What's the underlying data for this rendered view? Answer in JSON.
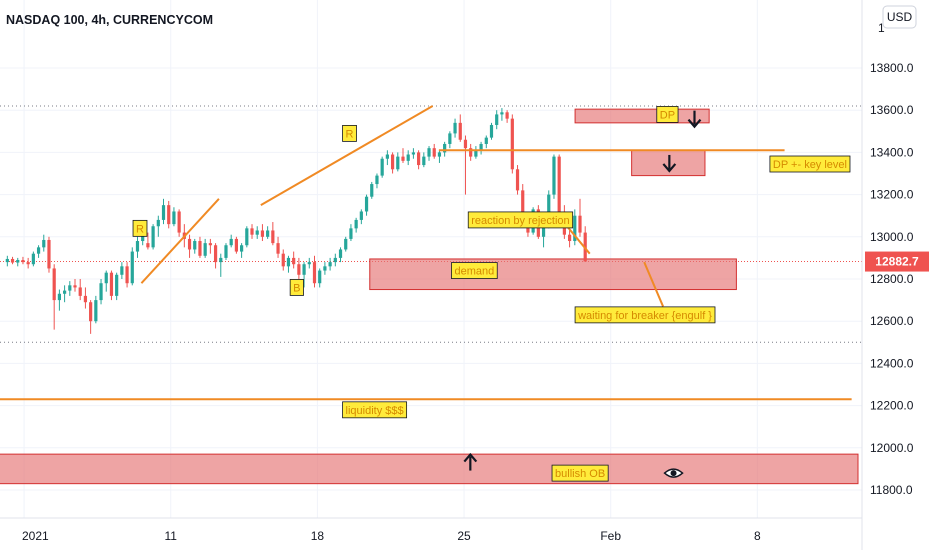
{
  "chart_data": {
    "type": "candlestick",
    "title": "NASDAQ 100, 4h, CURRENCYCOM",
    "currency": "USD",
    "last_price": "12882.7",
    "ylim": [
      11740,
      14060
    ],
    "y_ticks": [
      {
        "value": 13800,
        "label": "13800.0"
      },
      {
        "value": 13600,
        "label": "13600.0"
      },
      {
        "value": 13400,
        "label": "13400.0"
      },
      {
        "value": 13200,
        "label": "13200.0"
      },
      {
        "value": 13000,
        "label": "13000.0"
      },
      {
        "value": 12800,
        "label": "12800.0"
      },
      {
        "value": 12600,
        "label": "12600.0"
      },
      {
        "value": 12400,
        "label": "12400.0"
      },
      {
        "value": 12200,
        "label": "12200.0"
      },
      {
        "value": 12000,
        "label": "12000.0"
      },
      {
        "value": 11800,
        "label": "11800.0"
      }
    ],
    "top_partial_tick": "1",
    "x_ticks": [
      {
        "day": 0,
        "label": "2021"
      },
      {
        "day": 7,
        "label": "11"
      },
      {
        "day": 14,
        "label": "18"
      },
      {
        "day": 21,
        "label": "25"
      },
      {
        "day": 28,
        "label": "Feb"
      },
      {
        "day": 35,
        "label": "8"
      }
    ],
    "ohlc": [
      [
        12880,
        12910,
        12860,
        12895
      ],
      [
        12895,
        12905,
        12870,
        12878
      ],
      [
        12878,
        12900,
        12860,
        12890
      ],
      [
        12890,
        12905,
        12870,
        12880
      ],
      [
        12880,
        12900,
        12850,
        12870
      ],
      [
        12870,
        12930,
        12860,
        12920
      ],
      [
        12920,
        12960,
        12900,
        12950
      ],
      [
        12950,
        13010,
        12930,
        12985
      ],
      [
        12985,
        13000,
        12830,
        12850
      ],
      [
        12850,
        12870,
        12560,
        12700
      ],
      [
        12700,
        12750,
        12650,
        12730
      ],
      [
        12730,
        12770,
        12690,
        12745
      ],
      [
        12745,
        12790,
        12720,
        12770
      ],
      [
        12770,
        12800,
        12740,
        12760
      ],
      [
        12760,
        12800,
        12700,
        12720
      ],
      [
        12720,
        12760,
        12660,
        12690
      ],
      [
        12690,
        12700,
        12540,
        12600
      ],
      [
        12600,
        12720,
        12590,
        12700
      ],
      [
        12700,
        12800,
        12680,
        12780
      ],
      [
        12780,
        12840,
        12740,
        12830
      ],
      [
        12830,
        12840,
        12700,
        12720
      ],
      [
        12720,
        12830,
        12700,
        12820
      ],
      [
        12820,
        12880,
        12800,
        12860
      ],
      [
        12860,
        12880,
        12760,
        12780
      ],
      [
        12780,
        12950,
        12770,
        12930
      ],
      [
        12930,
        13000,
        12900,
        12980
      ],
      [
        12980,
        13060,
        12960,
        13040
      ],
      [
        12970,
        13020,
        12940,
        12950
      ],
      [
        12950,
        13060,
        12940,
        13050
      ],
      [
        13050,
        13100,
        13000,
        13080
      ],
      [
        13080,
        13180,
        13060,
        13150
      ],
      [
        13150,
        13170,
        13040,
        13060
      ],
      [
        13060,
        13140,
        13050,
        13120
      ],
      [
        13120,
        13130,
        13000,
        13020
      ],
      [
        13020,
        13060,
        12950,
        12990
      ],
      [
        12990,
        13010,
        12900,
        12940
      ],
      [
        12940,
        12990,
        12920,
        12980
      ],
      [
        12980,
        13000,
        12900,
        12910
      ],
      [
        12910,
        12990,
        12900,
        12970
      ],
      [
        12970,
        12990,
        12920,
        12960
      ],
      [
        12960,
        12970,
        12850,
        12880
      ],
      [
        12880,
        12920,
        12810,
        12900
      ],
      [
        12900,
        12970,
        12890,
        12960
      ],
      [
        12960,
        13010,
        12950,
        12990
      ],
      [
        12990,
        13000,
        12920,
        12930
      ],
      [
        12930,
        12970,
        12900,
        12960
      ],
      [
        12960,
        13050,
        12950,
        13040
      ],
      [
        13040,
        13060,
        12990,
        13010
      ],
      [
        13010,
        13050,
        12990,
        13030
      ],
      [
        13030,
        13060,
        12980,
        13000
      ],
      [
        13000,
        13050,
        12990,
        13030
      ],
      [
        13030,
        13070,
        12960,
        12970
      ],
      [
        12970,
        13000,
        12900,
        12920
      ],
      [
        12920,
        12940,
        12840,
        12860
      ],
      [
        12860,
        12910,
        12830,
        12900
      ],
      [
        12900,
        12930,
        12850,
        12870
      ],
      [
        12870,
        12900,
        12800,
        12820
      ],
      [
        12820,
        12880,
        12760,
        12870
      ],
      [
        12870,
        12900,
        12850,
        12880
      ],
      [
        12880,
        12910,
        12760,
        12780
      ],
      [
        12780,
        12850,
        12760,
        12840
      ],
      [
        12840,
        12880,
        12820,
        12860
      ],
      [
        12860,
        12900,
        12840,
        12880
      ],
      [
        12880,
        12920,
        12860,
        12900
      ],
      [
        12900,
        12950,
        12880,
        12940
      ],
      [
        12940,
        13000,
        12930,
        12990
      ],
      [
        12990,
        13060,
        12980,
        13040
      ],
      [
        13040,
        13090,
        13020,
        13080
      ],
      [
        13080,
        13130,
        13060,
        13120
      ],
      [
        13120,
        13200,
        13100,
        13190
      ],
      [
        13190,
        13260,
        13180,
        13250
      ],
      [
        13250,
        13300,
        13230,
        13290
      ],
      [
        13290,
        13380,
        13280,
        13370
      ],
      [
        13370,
        13410,
        13340,
        13390
      ],
      [
        13390,
        13400,
        13300,
        13320
      ],
      [
        13320,
        13400,
        13310,
        13380
      ],
      [
        13380,
        13420,
        13350,
        13360
      ],
      [
        13360,
        13410,
        13340,
        13390
      ],
      [
        13390,
        13420,
        13370,
        13400
      ],
      [
        13400,
        13410,
        13320,
        13340
      ],
      [
        13340,
        13400,
        13330,
        13380
      ],
      [
        13380,
        13430,
        13360,
        13420
      ],
      [
        13420,
        13440,
        13370,
        13380
      ],
      [
        13380,
        13410,
        13350,
        13400
      ],
      [
        13400,
        13450,
        13380,
        13440
      ],
      [
        13440,
        13500,
        13420,
        13490
      ],
      [
        13490,
        13560,
        13470,
        13540
      ],
      [
        13540,
        13580,
        13450,
        13460
      ],
      [
        13460,
        13480,
        13200,
        13420
      ],
      [
        13420,
        13440,
        13360,
        13380
      ],
      [
        13380,
        13430,
        13370,
        13410
      ],
      [
        13410,
        13450,
        13390,
        13440
      ],
      [
        13440,
        13480,
        13420,
        13470
      ],
      [
        13470,
        13540,
        13460,
        13530
      ],
      [
        13530,
        13600,
        13510,
        13580
      ],
      [
        13580,
        13610,
        13550,
        13590
      ],
      [
        13590,
        13600,
        13540,
        13560
      ],
      [
        13560,
        13580,
        13300,
        13320
      ],
      [
        13320,
        13340,
        13200,
        13220
      ],
      [
        13220,
        13250,
        13050,
        13080
      ],
      [
        13080,
        13100,
        13000,
        13020
      ],
      [
        13020,
        13140,
        13010,
        13130
      ],
      [
        13130,
        13150,
        12990,
        13000
      ],
      [
        13000,
        13090,
        12950,
        13060
      ],
      [
        13060,
        13220,
        13040,
        13200
      ],
      [
        13200,
        13390,
        13180,
        13380
      ],
      [
        13380,
        13390,
        13100,
        13120
      ],
      [
        13120,
        13150,
        12990,
        13010
      ],
      [
        13010,
        13060,
        12950,
        12980
      ],
      [
        12980,
        13130,
        12960,
        13100
      ],
      [
        13100,
        13180,
        13000,
        13020
      ],
      [
        13020,
        13050,
        12900,
        12883
      ]
    ],
    "candle_start_day": -0.8,
    "candle_step_day": 0.2485,
    "colors": {
      "up": "#26a69a",
      "down": "#ef5350",
      "zone_fill": "#e57373",
      "zone_edge": "#d32f2f",
      "line": "#f08a24",
      "label_bg": "#ffeb3b",
      "label_text": "#d58a00"
    },
    "zones": [
      {
        "name": "dp-zone",
        "d0": 26.3,
        "d1": 32.7,
        "p0": 13540,
        "p1": 13605
      },
      {
        "name": "dp-key-level-zone",
        "d0": 29.0,
        "d1": 32.5,
        "p0": 13290,
        "p1": 13410
      },
      {
        "name": "demand-zone",
        "d0": 16.5,
        "d1": 34.0,
        "p0": 12750,
        "p1": 12895
      },
      {
        "name": "bullish-ob-zone",
        "d0": -1.5,
        "d1": 40.0,
        "p0": 11830,
        "p1": 11970
      }
    ],
    "lines": [
      {
        "name": "trend-line-1",
        "d0": 5.6,
        "p0": 12780,
        "d1": 9.3,
        "p1": 13180
      },
      {
        "name": "trend-line-2",
        "d0": 11.3,
        "p0": 13150,
        "d1": 19.5,
        "p1": 13620
      },
      {
        "name": "key-level-line",
        "d0": 19.8,
        "p0": 13410,
        "d1": 36.3,
        "p1": 13410
      },
      {
        "name": "liquidity-line",
        "d0": -1.5,
        "p0": 12230,
        "d1": 39.5,
        "p1": 12230
      },
      {
        "name": "drop-line-1",
        "d0": 25.5,
        "p0": 13100,
        "d1": 27.0,
        "p1": 12920
      },
      {
        "name": "drop-line-2",
        "d0": 29.6,
        "p0": 12880,
        "d1": 30.5,
        "p1": 12670
      }
    ],
    "dotted_levels": [
      13620,
      12500
    ],
    "annotations": [
      {
        "name": "label-r1",
        "text": "R",
        "d": 5.2,
        "p": 13040
      },
      {
        "name": "label-r2",
        "text": "R",
        "d": 15.2,
        "p": 13490
      },
      {
        "name": "label-b",
        "text": "B",
        "d": 12.7,
        "p": 12760
      },
      {
        "name": "label-dp",
        "text": "DP",
        "d": 30.2,
        "p": 13580
      },
      {
        "name": "label-dp-key-level",
        "text": "DP +- key level",
        "d": 35.6,
        "p": 13345
      },
      {
        "name": "label-reaction",
        "text": "reaction by rejection",
        "d": 21.2,
        "p": 13080
      },
      {
        "name": "label-demand",
        "text": "demand",
        "d": 20.4,
        "p": 12840
      },
      {
        "name": "label-waiting",
        "text": "waiting  for breaker {engulf }",
        "d": 26.3,
        "p": 12630
      },
      {
        "name": "label-liquidity",
        "text": "liquidity $$$",
        "d": 15.2,
        "p": 12180
      },
      {
        "name": "label-bullish-ob",
        "text": "bullish OB",
        "d": 25.2,
        "p": 11880
      }
    ],
    "arrows": [
      {
        "name": "down-arrow-icon-1",
        "dir": "down",
        "d": 32.0,
        "p": 13560
      },
      {
        "name": "down-arrow-icon-2",
        "dir": "down",
        "d": 30.8,
        "p": 13350
      },
      {
        "name": "up-arrow-icon",
        "dir": "up",
        "d": 21.3,
        "p": 11930
      }
    ],
    "eye_icon": {
      "name": "eye-icon",
      "d": 31.0,
      "p": 11880
    }
  }
}
